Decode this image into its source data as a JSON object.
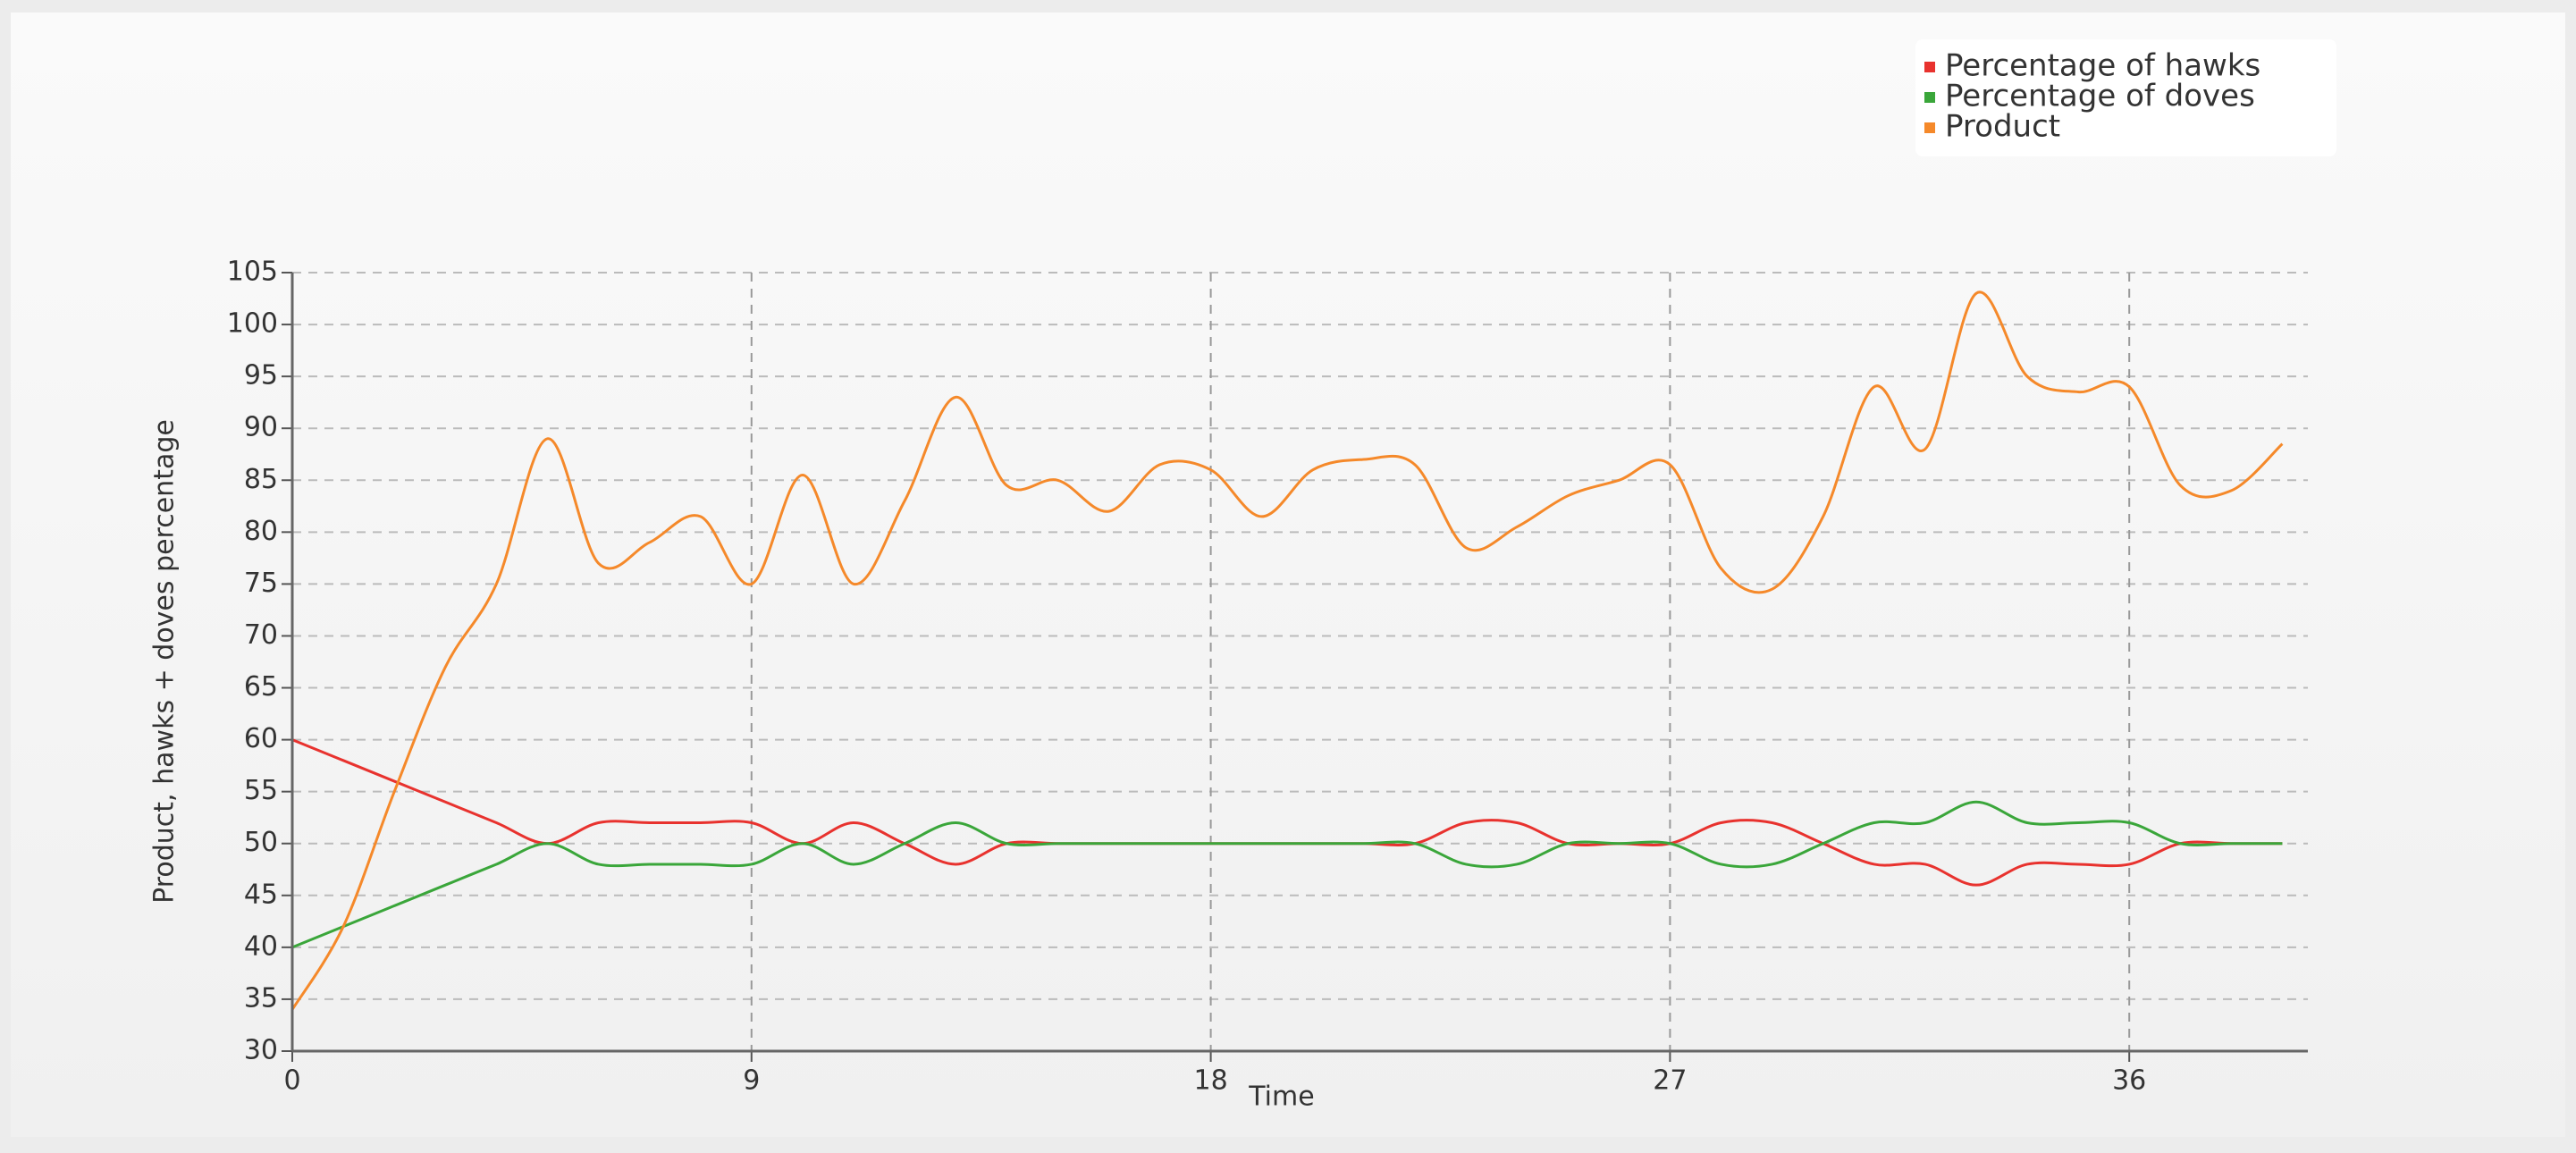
{
  "chart_data": {
    "type": "line",
    "x_label": "Time",
    "y_label": "Product, hawks + doves percentage",
    "x": [
      0,
      1,
      2,
      3,
      4,
      5,
      6,
      7,
      8,
      9,
      10,
      11,
      12,
      13,
      14,
      15,
      16,
      17,
      18,
      19,
      20,
      21,
      22,
      23,
      24,
      25,
      26,
      27,
      28,
      29,
      30,
      31,
      32,
      33,
      34,
      35,
      36,
      37,
      38,
      39
    ],
    "series": [
      {
        "name": "Percentage of hawks",
        "color": "#e8322e",
        "values": [
          60,
          58,
          56,
          54,
          52,
          50,
          52,
          52,
          52,
          52,
          50,
          52,
          50,
          48,
          50,
          50,
          50,
          50,
          50,
          50,
          50,
          50,
          50,
          52,
          52,
          50,
          50,
          50,
          52,
          52,
          50,
          48,
          48,
          46,
          48,
          48,
          48,
          50,
          50,
          50
        ]
      },
      {
        "name": "Percentage of doves",
        "color": "#3aa63a",
        "values": [
          40,
          42,
          44,
          46,
          48,
          50,
          48,
          48,
          48,
          48,
          50,
          48,
          50,
          52,
          50,
          50,
          50,
          50,
          50,
          50,
          50,
          50,
          50,
          48,
          48,
          50,
          50,
          50,
          48,
          48,
          50,
          52,
          52,
          54,
          52,
          52,
          52,
          50,
          50,
          50
        ]
      },
      {
        "name": "Product",
        "color": "#f5892a",
        "values": [
          34,
          42,
          55,
          67,
          75,
          89,
          77,
          79,
          81.5,
          75,
          85.5,
          75,
          83,
          93,
          84.5,
          85,
          82,
          86.5,
          86,
          81.5,
          86,
          87,
          86.5,
          78.5,
          80.5,
          83.5,
          85,
          86.5,
          76.5,
          74.5,
          81.5,
          94,
          88,
          103,
          95,
          93.5,
          94,
          84.5,
          84,
          88.5
        ]
      }
    ],
    "xlim": [
      0,
      39.5
    ],
    "xticks": [
      0,
      9,
      18,
      27,
      36
    ],
    "ylim": [
      30,
      105
    ],
    "yticks": [
      30,
      35,
      40,
      45,
      50,
      55,
      60,
      65,
      70,
      75,
      80,
      85,
      90,
      95,
      100,
      105
    ],
    "grid": true,
    "legend": "top-right"
  }
}
